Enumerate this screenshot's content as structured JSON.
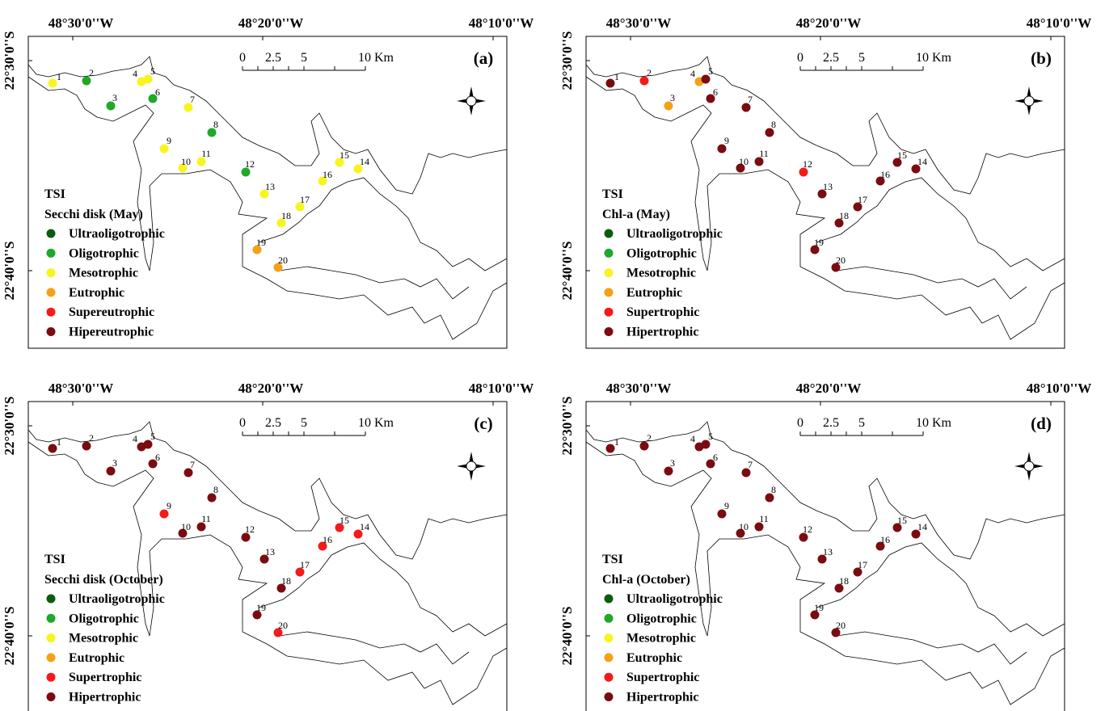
{
  "panels": [
    {
      "label": "(a)",
      "top_coords": [
        "48°30'0''W",
        "48°20'0''W",
        "48°10'0''W"
      ],
      "left_coords": [
        "22°30'0''S",
        "22°40'0''S"
      ],
      "scale": [
        "0",
        "2.5",
        "5",
        "10 Km"
      ],
      "legend": {
        "title": "TSI",
        "subtitle": "Secchi disk (May)",
        "items": [
          {
            "label": "Ultraoligotrophic",
            "color": "#0b5c12"
          },
          {
            "label": "Oligotrophic",
            "color": "#1fa82a"
          },
          {
            "label": "Mesotrophic",
            "color": "#f7f41f"
          },
          {
            "label": "Eutrophic",
            "color": "#f5a016"
          },
          {
            "label": "Supereutrophic",
            "color": "#f51a1a"
          },
          {
            "label": "Hipereutrophic",
            "color": "#7a0c10"
          }
        ]
      },
      "stations": [
        {
          "label": "1",
          "color": "#f7f41f"
        },
        {
          "label": "2",
          "color": "#1fa82a"
        },
        {
          "label": "3",
          "color": "#1fa82a"
        },
        {
          "label": "4",
          "color": "#f7f41f"
        },
        {
          "label": "5",
          "color": "#f7f41f"
        },
        {
          "label": "6",
          "color": "#1fa82a"
        },
        {
          "label": "7",
          "color": "#f7f41f"
        },
        {
          "label": "8",
          "color": "#1fa82a"
        },
        {
          "label": "9",
          "color": "#f7f41f"
        },
        {
          "label": "10",
          "color": "#f7f41f"
        },
        {
          "label": "11",
          "color": "#f7f41f"
        },
        {
          "label": "12",
          "color": "#1fa82a"
        },
        {
          "label": "13",
          "color": "#f7f41f"
        },
        {
          "label": "14",
          "color": "#f7f41f"
        },
        {
          "label": "15",
          "color": "#f7f41f"
        },
        {
          "label": "16",
          "color": "#f7f41f"
        },
        {
          "label": "17",
          "color": "#f7f41f"
        },
        {
          "label": "18",
          "color": "#f7f41f"
        },
        {
          "label": "19",
          "color": "#f5a016"
        },
        {
          "label": "20",
          "color": "#f5a016"
        }
      ]
    },
    {
      "label": "(b)",
      "top_coords": [
        "48°30'0''W",
        "48°20'0''W",
        "48°10'0''W"
      ],
      "left_coords": [
        "22°30'0''S",
        "22°40'0''S"
      ],
      "scale": [
        "0",
        "2.5",
        "5",
        "10 Km"
      ],
      "legend": {
        "title": "TSI",
        "subtitle": "Chl-a (May)",
        "items": [
          {
            "label": "Ultraoligotrophic",
            "color": "#0b5c12"
          },
          {
            "label": "Oligotrophic",
            "color": "#1fa82a"
          },
          {
            "label": "Mesotrophic",
            "color": "#f7f41f"
          },
          {
            "label": "Eutrophic",
            "color": "#f5a016"
          },
          {
            "label": "Supertrophic",
            "color": "#f51a1a"
          },
          {
            "label": "Hipertrophic",
            "color": "#7a0c10"
          }
        ]
      },
      "stations": [
        {
          "label": "1",
          "color": "#7a0c10"
        },
        {
          "label": "2",
          "color": "#f51a1a"
        },
        {
          "label": "3",
          "color": "#f5a016"
        },
        {
          "label": "4",
          "color": "#f5a016"
        },
        {
          "label": "5",
          "color": "#7a0c10"
        },
        {
          "label": "6",
          "color": "#7a0c10"
        },
        {
          "label": "7",
          "color": "#7a0c10"
        },
        {
          "label": "8",
          "color": "#7a0c10"
        },
        {
          "label": "9",
          "color": "#7a0c10"
        },
        {
          "label": "10",
          "color": "#7a0c10"
        },
        {
          "label": "11",
          "color": "#7a0c10"
        },
        {
          "label": "12",
          "color": "#f51a1a"
        },
        {
          "label": "13",
          "color": "#7a0c10"
        },
        {
          "label": "14",
          "color": "#7a0c10"
        },
        {
          "label": "15",
          "color": "#7a0c10"
        },
        {
          "label": "16",
          "color": "#7a0c10"
        },
        {
          "label": "17",
          "color": "#7a0c10"
        },
        {
          "label": "18",
          "color": "#7a0c10"
        },
        {
          "label": "19",
          "color": "#7a0c10"
        },
        {
          "label": "20",
          "color": "#7a0c10"
        }
      ]
    },
    {
      "label": "(c)",
      "top_coords": [
        "48°30'0''W",
        "48°20'0''W",
        "48°10'0''W"
      ],
      "left_coords": [
        "22°30'0''S",
        "22°40'0''S"
      ],
      "scale": [
        "0",
        "2.5",
        "5",
        "10 Km"
      ],
      "legend": {
        "title": "TSI",
        "subtitle": "Secchi disk (October)",
        "items": [
          {
            "label": "Ultraoligotrophic",
            "color": "#0b5c12"
          },
          {
            "label": "Oligotrophic",
            "color": "#1fa82a"
          },
          {
            "label": "Mesotrophic",
            "color": "#f7f41f"
          },
          {
            "label": "Eutrophic",
            "color": "#f5a016"
          },
          {
            "label": "Supertrophic",
            "color": "#f51a1a"
          },
          {
            "label": "Hipertrophic",
            "color": "#7a0c10"
          }
        ]
      },
      "stations": [
        {
          "label": "1",
          "color": "#7a0c10"
        },
        {
          "label": "2",
          "color": "#7a0c10"
        },
        {
          "label": "3",
          "color": "#7a0c10"
        },
        {
          "label": "4",
          "color": "#7a0c10"
        },
        {
          "label": "5",
          "color": "#7a0c10"
        },
        {
          "label": "6",
          "color": "#7a0c10"
        },
        {
          "label": "7",
          "color": "#7a0c10"
        },
        {
          "label": "8",
          "color": "#7a0c10"
        },
        {
          "label": "9",
          "color": "#f51a1a"
        },
        {
          "label": "10",
          "color": "#7a0c10"
        },
        {
          "label": "11",
          "color": "#7a0c10"
        },
        {
          "label": "12",
          "color": "#7a0c10"
        },
        {
          "label": "13",
          "color": "#7a0c10"
        },
        {
          "label": "14",
          "color": "#f51a1a"
        },
        {
          "label": "15",
          "color": "#f51a1a"
        },
        {
          "label": "16",
          "color": "#f51a1a"
        },
        {
          "label": "17",
          "color": "#f51a1a"
        },
        {
          "label": "18",
          "color": "#7a0c10"
        },
        {
          "label": "19",
          "color": "#7a0c10"
        },
        {
          "label": "20",
          "color": "#f51a1a"
        }
      ]
    },
    {
      "label": "(d)",
      "top_coords": [
        "48°30'0''W",
        "48°20'0''W",
        "48°10'0''W"
      ],
      "left_coords": [
        "22°30'0''S",
        "22°40'0''S"
      ],
      "scale": [
        "0",
        "2.5",
        "5",
        "10 Km"
      ],
      "legend": {
        "title": "TSI",
        "subtitle": "Chl-a (October)",
        "items": [
          {
            "label": "Ultraoligotrophic",
            "color": "#0b5c12"
          },
          {
            "label": "Oligotrophic",
            "color": "#1fa82a"
          },
          {
            "label": "Mesotrophic",
            "color": "#f7f41f"
          },
          {
            "label": "Eutrophic",
            "color": "#f5a016"
          },
          {
            "label": "Supertrophic",
            "color": "#f51a1a"
          },
          {
            "label": "Hipertrophic",
            "color": "#7a0c10"
          }
        ]
      },
      "stations": [
        {
          "label": "1",
          "color": "#7a0c10"
        },
        {
          "label": "2",
          "color": "#7a0c10"
        },
        {
          "label": "3",
          "color": "#7a0c10"
        },
        {
          "label": "4",
          "color": "#7a0c10"
        },
        {
          "label": "5",
          "color": "#7a0c10"
        },
        {
          "label": "6",
          "color": "#7a0c10"
        },
        {
          "label": "7",
          "color": "#7a0c10"
        },
        {
          "label": "8",
          "color": "#7a0c10"
        },
        {
          "label": "9",
          "color": "#7a0c10"
        },
        {
          "label": "10",
          "color": "#7a0c10"
        },
        {
          "label": "11",
          "color": "#7a0c10"
        },
        {
          "label": "12",
          "color": "#7a0c10"
        },
        {
          "label": "13",
          "color": "#7a0c10"
        },
        {
          "label": "14",
          "color": "#7a0c10"
        },
        {
          "label": "15",
          "color": "#7a0c10"
        },
        {
          "label": "16",
          "color": "#7a0c10"
        },
        {
          "label": "17",
          "color": "#7a0c10"
        },
        {
          "label": "18",
          "color": "#7a0c10"
        },
        {
          "label": "19",
          "color": "#7a0c10"
        },
        {
          "label": "20",
          "color": "#7a0c10"
        }
      ]
    }
  ]
}
